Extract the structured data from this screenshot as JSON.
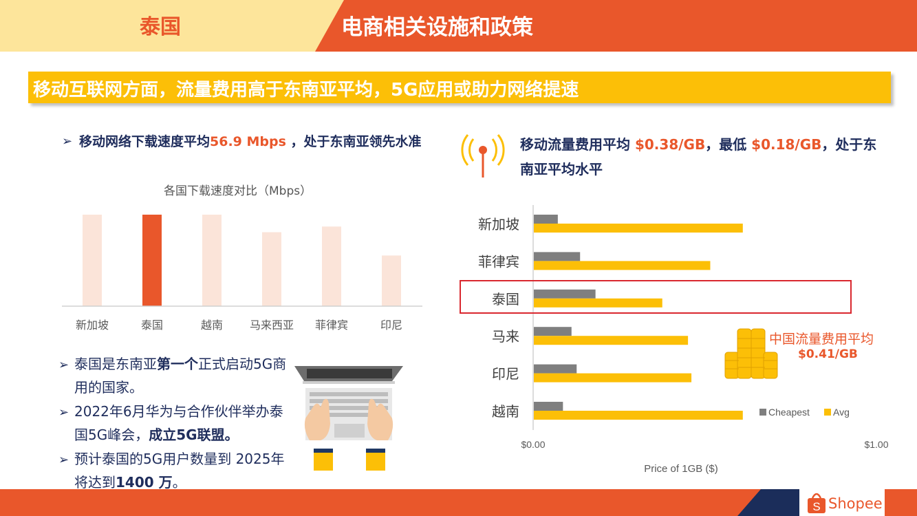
{
  "header": {
    "country": "泰国",
    "title": "电商相关设施和政策"
  },
  "banner": "移动互联网方面，流量费用高于东南亚平均，5G应用或助力网络提速",
  "left": {
    "bullet_pre": "移动网络下载速度平均",
    "bullet_value": "56.9 Mbps",
    "bullet_post": " ，处于东南亚领先水准",
    "chart_title": "各国下载速度对比（Mbps）"
  },
  "right": {
    "bullet_pre": "移动流量费用平均 ",
    "bullet_avg": "$0.38/GB",
    "bullet_mid": "，最低 ",
    "bullet_min": "$0.18/GB",
    "bullet_post": "，处于东南亚平均水平",
    "china_note_label": "中国流量费用平均",
    "china_note_value": "$0.41/GB"
  },
  "bottom_bullets": [
    {
      "pre": "泰国是东南亚",
      "bold": "第一个",
      "post": "正式启动5G商用的国家。"
    },
    {
      "pre": "2022年6月华为与合作伙伴举办泰国5G峰会，",
      "bold": "成立5G联盟。",
      "post": ""
    },
    {
      "pre": "预计泰国的5G用户数量到 2025年将达到",
      "bold": "1400 万",
      "post": "。"
    }
  ],
  "footer": {
    "brand": "Shopee"
  },
  "colors": {
    "orange": "#e9572b",
    "light_bar": "#fbe4d9",
    "gold": "#fcbf07",
    "gray_bar": "#7f7f7f",
    "navy": "#1f2d5c",
    "highlight_box": "#d9272e"
  },
  "chart_data": [
    {
      "type": "bar",
      "title": "各国下载速度对比（Mbps）",
      "categories": [
        "新加坡",
        "泰国",
        "越南",
        "马来西亚",
        "菲律宾",
        "印尼"
      ],
      "values": [
        56.9,
        56.9,
        56.9,
        46.0,
        49.5,
        31.5
      ],
      "highlight": "泰国",
      "xlabel": "",
      "ylabel": "",
      "grid": false
    },
    {
      "type": "bar",
      "orientation": "horizontal",
      "categories": [
        "新加坡",
        "菲律宾",
        "泰国",
        "马来",
        "印尼",
        "越南"
      ],
      "series": [
        {
          "name": "Cheapest",
          "values": [
            0.07,
            0.135,
            0.18,
            0.11,
            0.125,
            0.085
          ],
          "color": "#7f7f7f"
        },
        {
          "name": "Avg",
          "values": [
            0.61,
            0.515,
            0.375,
            0.45,
            0.46,
            0.61
          ],
          "color": "#fcbf07"
        }
      ],
      "xlabel": "Price of 1GB ($)",
      "xlim": [
        0,
        1.0
      ],
      "x_tick_labels": [
        "$0.00",
        "$1.00"
      ],
      "highlight": "泰国",
      "legend": "bottom-right",
      "grid": false
    }
  ]
}
